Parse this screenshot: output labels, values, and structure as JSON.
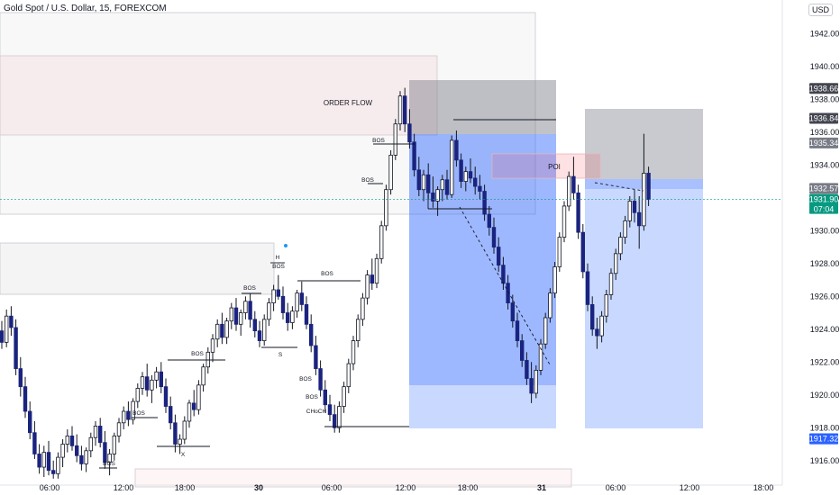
{
  "chart_data": {
    "type": "candlestick",
    "title": "Gold Spot / U.S. Dollar, 15, FOREXCOM",
    "currency": "USD",
    "ylim": [
      1915.0,
      1943.5
    ],
    "price_ticks": [
      1916,
      1918,
      1920,
      1922,
      1924,
      1926,
      1928,
      1930,
      1932,
      1934,
      1936,
      1938,
      1940,
      1942
    ],
    "time_ticks": [
      "06:00",
      "12:00",
      "18:00",
      "30",
      "06:00",
      "12:00",
      "18:00",
      "31",
      "06:00",
      "12:00",
      "18:00"
    ],
    "price_tags": [
      {
        "label": "1938.66",
        "value": 1938.66,
        "color": "#434651"
      },
      {
        "label": "1936.84",
        "value": 1936.84,
        "color": "#434651"
      },
      {
        "label": "1935.34",
        "value": 1935.34,
        "color": "#787b86"
      },
      {
        "label": "1932.57",
        "value": 1932.57,
        "color": "#787b86"
      },
      {
        "label": "1931.90",
        "value": 1931.9,
        "color": "#089981",
        "sub": "07:04"
      },
      {
        "label": "1917.33",
        "value": 1917.33,
        "color": "#2962ff"
      },
      {
        "label": "1917.32",
        "value": 1917.32,
        "color": "#2962ff"
      }
    ],
    "annotations": [
      "ORDER FLOW",
      "POI",
      "BOS",
      "BOS",
      "BOS",
      "BOS",
      "BOS",
      "BOS",
      "BOS",
      "BOS",
      "BOS",
      "BOS",
      "CHoCH",
      "S",
      "X",
      "H"
    ],
    "bars": [
      [
        1923.9,
        1924.5,
        1922.8,
        1923.2
      ],
      [
        1923.2,
        1925.2,
        1922.9,
        1924.8
      ],
      [
        1924.8,
        1925.4,
        1923.6,
        1924.1
      ],
      [
        1924.1,
        1924.6,
        1921.2,
        1921.6
      ],
      [
        1921.6,
        1922.3,
        1919.9,
        1920.5
      ],
      [
        1920.5,
        1921.1,
        1918.6,
        1919.0
      ],
      [
        1919.0,
        1919.6,
        1917.3,
        1917.7
      ],
      [
        1917.7,
        1918.4,
        1916.1,
        1916.4
      ],
      [
        1916.4,
        1917.0,
        1915.2,
        1915.6
      ],
      [
        1915.6,
        1916.9,
        1915.0,
        1916.5
      ],
      [
        1916.5,
        1917.2,
        1915.1,
        1915.4
      ],
      [
        1915.4,
        1916.0,
        1914.9,
        1915.2
      ],
      [
        1915.2,
        1916.5,
        1914.9,
        1916.2
      ],
      [
        1916.2,
        1917.3,
        1915.6,
        1917.0
      ],
      [
        1917.0,
        1917.9,
        1916.5,
        1917.5
      ],
      [
        1917.5,
        1918.1,
        1916.6,
        1916.9
      ],
      [
        1916.9,
        1917.6,
        1915.9,
        1916.3
      ],
      [
        1916.3,
        1916.9,
        1915.4,
        1915.8
      ],
      [
        1915.8,
        1916.8,
        1915.3,
        1916.6
      ],
      [
        1916.6,
        1917.7,
        1916.2,
        1917.4
      ],
      [
        1917.4,
        1918.4,
        1916.9,
        1918.1
      ],
      [
        1918.1,
        1918.6,
        1916.8,
        1917.1
      ],
      [
        1917.1,
        1917.8,
        1915.5,
        1915.9
      ],
      [
        1915.9,
        1916.7,
        1915.1,
        1916.4
      ],
      [
        1916.4,
        1917.7,
        1916.0,
        1917.5
      ],
      [
        1917.5,
        1918.6,
        1917.1,
        1918.3
      ],
      [
        1918.3,
        1919.3,
        1917.9,
        1919.0
      ],
      [
        1919.0,
        1919.6,
        1918.1,
        1918.5
      ],
      [
        1918.5,
        1919.8,
        1918.2,
        1919.6
      ],
      [
        1919.6,
        1920.7,
        1919.2,
        1920.4
      ],
      [
        1920.4,
        1921.4,
        1920.0,
        1921.1
      ],
      [
        1921.1,
        1921.9,
        1919.9,
        1920.3
      ],
      [
        1920.3,
        1921.2,
        1919.5,
        1920.9
      ],
      [
        1920.9,
        1921.7,
        1920.4,
        1921.4
      ],
      [
        1921.4,
        1922.0,
        1920.1,
        1920.5
      ],
      [
        1920.5,
        1921.0,
        1918.9,
        1919.3
      ],
      [
        1919.3,
        1919.9,
        1917.9,
        1918.3
      ],
      [
        1918.3,
        1918.8,
        1916.5,
        1917.0
      ],
      [
        1917.0,
        1917.6,
        1916.4,
        1917.3
      ],
      [
        1917.3,
        1918.7,
        1917.0,
        1918.4
      ],
      [
        1918.4,
        1919.7,
        1918.0,
        1919.5
      ],
      [
        1919.5,
        1920.3,
        1918.7,
        1919.1
      ],
      [
        1919.1,
        1920.9,
        1918.8,
        1920.6
      ],
      [
        1920.6,
        1921.9,
        1920.2,
        1921.7
      ],
      [
        1921.7,
        1922.9,
        1921.3,
        1922.6
      ],
      [
        1922.6,
        1923.7,
        1922.0,
        1923.4
      ],
      [
        1923.4,
        1924.6,
        1922.9,
        1924.3
      ],
      [
        1924.3,
        1925.0,
        1923.1,
        1923.5
      ],
      [
        1923.5,
        1924.7,
        1923.1,
        1924.5
      ],
      [
        1924.5,
        1925.6,
        1924.0,
        1925.3
      ],
      [
        1925.3,
        1925.9,
        1923.9,
        1924.3
      ],
      [
        1924.3,
        1925.2,
        1923.6,
        1925.0
      ],
      [
        1925.0,
        1926.0,
        1924.6,
        1925.7
      ],
      [
        1925.7,
        1926.2,
        1924.1,
        1924.6
      ],
      [
        1924.6,
        1925.1,
        1923.5,
        1923.9
      ],
      [
        1923.9,
        1924.5,
        1922.9,
        1923.3
      ],
      [
        1923.3,
        1924.9,
        1923.0,
        1924.6
      ],
      [
        1924.6,
        1925.9,
        1924.2,
        1925.6
      ],
      [
        1925.6,
        1926.7,
        1925.1,
        1926.4
      ],
      [
        1926.4,
        1927.3,
        1925.8,
        1926.0
      ],
      [
        1926.0,
        1926.6,
        1924.6,
        1925.0
      ],
      [
        1925.0,
        1925.6,
        1923.9,
        1924.4
      ],
      [
        1924.4,
        1925.4,
        1924.0,
        1925.1
      ],
      [
        1925.1,
        1926.4,
        1924.7,
        1926.2
      ],
      [
        1926.2,
        1926.9,
        1925.1,
        1925.5
      ],
      [
        1925.5,
        1926.0,
        1924.0,
        1924.3
      ],
      [
        1924.3,
        1924.9,
        1922.6,
        1923.0
      ],
      [
        1923.0,
        1923.6,
        1921.2,
        1921.6
      ],
      [
        1921.6,
        1922.1,
        1919.9,
        1920.3
      ],
      [
        1920.3,
        1920.9,
        1918.9,
        1919.4
      ],
      [
        1919.4,
        1920.0,
        1918.4,
        1918.8
      ],
      [
        1918.8,
        1919.4,
        1917.7,
        1918.0
      ],
      [
        1918.0,
        1919.6,
        1917.7,
        1919.3
      ],
      [
        1919.3,
        1920.8,
        1918.9,
        1920.5
      ],
      [
        1920.5,
        1922.2,
        1920.1,
        1921.9
      ],
      [
        1921.9,
        1923.6,
        1921.5,
        1923.3
      ],
      [
        1923.3,
        1924.9,
        1922.9,
        1924.6
      ],
      [
        1924.6,
        1926.2,
        1924.2,
        1925.9
      ],
      [
        1925.9,
        1927.6,
        1925.5,
        1927.3
      ],
      [
        1927.3,
        1928.3,
        1926.4,
        1926.8
      ],
      [
        1926.8,
        1928.6,
        1926.5,
        1928.3
      ],
      [
        1928.3,
        1930.6,
        1928.0,
        1930.3
      ],
      [
        1930.3,
        1932.8,
        1930.0,
        1932.5
      ],
      [
        1932.5,
        1934.9,
        1932.2,
        1934.6
      ],
      [
        1934.6,
        1936.8,
        1934.3,
        1936.5
      ],
      [
        1936.5,
        1938.5,
        1936.1,
        1938.2
      ],
      [
        1938.2,
        1938.7,
        1936.0,
        1936.5
      ],
      [
        1936.5,
        1937.4,
        1935.0,
        1935.4
      ],
      [
        1935.4,
        1935.9,
        1933.3,
        1933.7
      ],
      [
        1933.7,
        1934.5,
        1932.1,
        1932.5
      ],
      [
        1932.5,
        1933.7,
        1931.8,
        1933.4
      ],
      [
        1933.4,
        1934.1,
        1931.9,
        1932.3
      ],
      [
        1932.3,
        1933.3,
        1931.4,
        1931.8
      ],
      [
        1931.8,
        1932.7,
        1930.9,
        1932.5
      ],
      [
        1932.5,
        1933.4,
        1931.8,
        1933.1
      ],
      [
        1933.1,
        1933.7,
        1931.9,
        1932.2
      ],
      [
        1932.2,
        1935.8,
        1932.0,
        1935.5
      ],
      [
        1935.5,
        1936.1,
        1933.9,
        1934.3
      ],
      [
        1934.3,
        1934.7,
        1932.6,
        1933.0
      ],
      [
        1933.0,
        1933.9,
        1932.4,
        1933.6
      ],
      [
        1933.6,
        1934.4,
        1932.9,
        1933.2
      ],
      [
        1933.2,
        1933.9,
        1932.2,
        1932.7
      ],
      [
        1932.7,
        1933.4,
        1931.9,
        1932.4
      ],
      [
        1932.4,
        1932.8,
        1930.6,
        1931.0
      ],
      [
        1931.0,
        1931.5,
        1929.7,
        1930.2
      ],
      [
        1930.2,
        1930.8,
        1928.6,
        1929.0
      ],
      [
        1929.0,
        1929.6,
        1927.5,
        1927.9
      ],
      [
        1927.9,
        1928.4,
        1926.4,
        1926.8
      ],
      [
        1926.8,
        1927.3,
        1925.2,
        1925.6
      ],
      [
        1925.6,
        1926.1,
        1924.1,
        1924.5
      ],
      [
        1924.5,
        1925.0,
        1922.9,
        1923.3
      ],
      [
        1923.3,
        1923.7,
        1921.7,
        1922.1
      ],
      [
        1922.1,
        1922.6,
        1920.6,
        1921.0
      ],
      [
        1921.0,
        1922.0,
        1919.5,
        1920.1
      ],
      [
        1920.1,
        1921.8,
        1919.8,
        1921.5
      ],
      [
        1921.5,
        1923.4,
        1921.2,
        1923.1
      ],
      [
        1923.1,
        1925.0,
        1922.8,
        1924.7
      ],
      [
        1924.7,
        1926.5,
        1924.4,
        1926.2
      ],
      [
        1926.2,
        1928.1,
        1925.9,
        1927.8
      ],
      [
        1927.8,
        1929.9,
        1927.5,
        1929.6
      ],
      [
        1929.6,
        1931.8,
        1929.3,
        1931.5
      ],
      [
        1931.5,
        1933.6,
        1931.2,
        1933.3
      ],
      [
        1933.3,
        1934.5,
        1931.9,
        1932.3
      ],
      [
        1932.3,
        1932.8,
        1929.5,
        1929.9
      ],
      [
        1929.9,
        1930.4,
        1927.1,
        1927.5
      ],
      [
        1927.5,
        1928.0,
        1925.1,
        1925.5
      ],
      [
        1925.5,
        1926.0,
        1923.6,
        1924.0
      ],
      [
        1924.0,
        1924.7,
        1922.8,
        1923.6
      ],
      [
        1923.6,
        1925.1,
        1923.2,
        1924.8
      ],
      [
        1924.8,
        1926.4,
        1924.4,
        1926.1
      ],
      [
        1926.1,
        1927.7,
        1925.8,
        1927.4
      ],
      [
        1927.4,
        1928.9,
        1927.0,
        1928.6
      ],
      [
        1928.6,
        1929.9,
        1928.2,
        1929.6
      ],
      [
        1929.6,
        1930.9,
        1929.2,
        1930.6
      ],
      [
        1930.6,
        1932.1,
        1930.2,
        1931.8
      ],
      [
        1931.8,
        1932.5,
        1930.5,
        1931.1
      ],
      [
        1931.1,
        1932.1,
        1928.9,
        1930.3
      ],
      [
        1930.3,
        1935.9,
        1930.0,
        1933.5
      ],
      [
        1933.5,
        1933.9,
        1931.5,
        1931.9
      ]
    ]
  }
}
